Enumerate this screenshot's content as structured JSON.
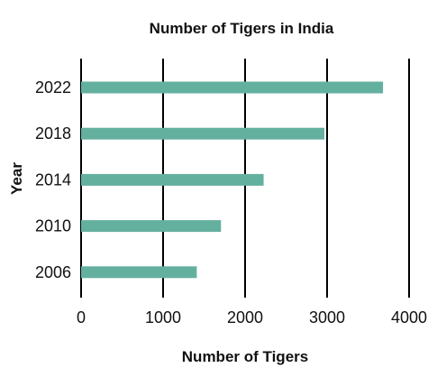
{
  "chart_data": {
    "type": "bar",
    "orientation": "horizontal",
    "title": "Number of Tigers in India",
    "xlabel": "Number of Tigers",
    "ylabel": "Year",
    "categories": [
      "2022",
      "2018",
      "2014",
      "2010",
      "2006"
    ],
    "values": [
      3682,
      2967,
      2226,
      1706,
      1411
    ],
    "xlim": [
      0,
      4000
    ],
    "xticks": [
      "0",
      "1000",
      "2000",
      "3000",
      "4000"
    ],
    "grid": "vertical",
    "bar_color": "#64b09f",
    "gridline_color": "#000000"
  }
}
